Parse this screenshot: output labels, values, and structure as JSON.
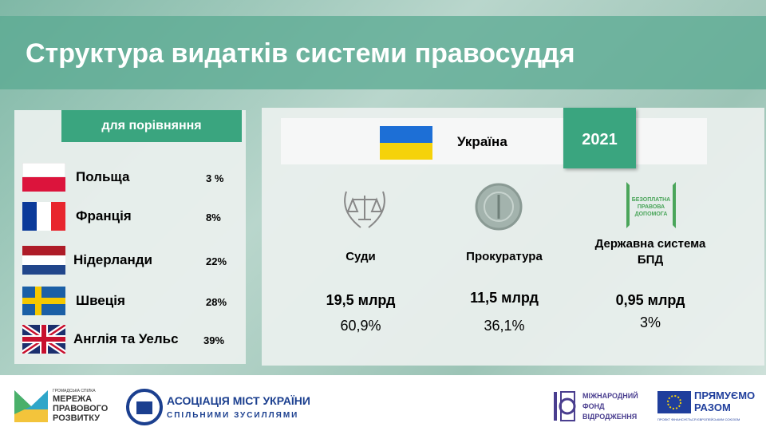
{
  "header": {
    "title": "Структура видатків системи правосуддя"
  },
  "comparison": {
    "title": "для порівняння",
    "countries": [
      {
        "name": "Польща",
        "share": "3 %"
      },
      {
        "name": "Франція",
        "share": "8%"
      },
      {
        "name": "Нідерланди",
        "share": "22%"
      },
      {
        "name": "Швеція",
        "share": "28%"
      },
      {
        "name": "Англія та Уельс",
        "share": "39%"
      }
    ]
  },
  "ukraine": {
    "country": "Україна",
    "year": "2021",
    "icon_text": "БЕЗОПЛАТНА ПРАВОВА ДОПОМОГА",
    "institutions": [
      {
        "name": "Суди",
        "amount": "19,5 млрд",
        "share": "60,9%"
      },
      {
        "name": "Прокуратура",
        "amount": "11,5 млрд",
        "share": "36,1%"
      },
      {
        "name": "Державна система БПД",
        "amount": "0,95 млрд",
        "share": "3%"
      }
    ]
  },
  "footer": {
    "network_caption": "ГРОМАДСЬКА СПІЛКА",
    "network": "МЕРЕЖА ПРАВОВОГО РОЗВИТКУ",
    "cities": "АСОЦІАЦІЯ МІСТ УКРАЇНИ",
    "cities_motto": "СПІЛЬНИМИ ЗУСИЛЛЯМИ",
    "irf": "МІЖНАРОДНИЙ ФОНД ВІДРОДЖЕННЯ",
    "eu": "ПРЯМУЄМО РАЗОМ",
    "eu_caption": "ПРОЕКТ ФІНАНСУЄТЬСЯ ЄВРОПЕЙСЬКИМ СОЮЗОМ"
  }
}
